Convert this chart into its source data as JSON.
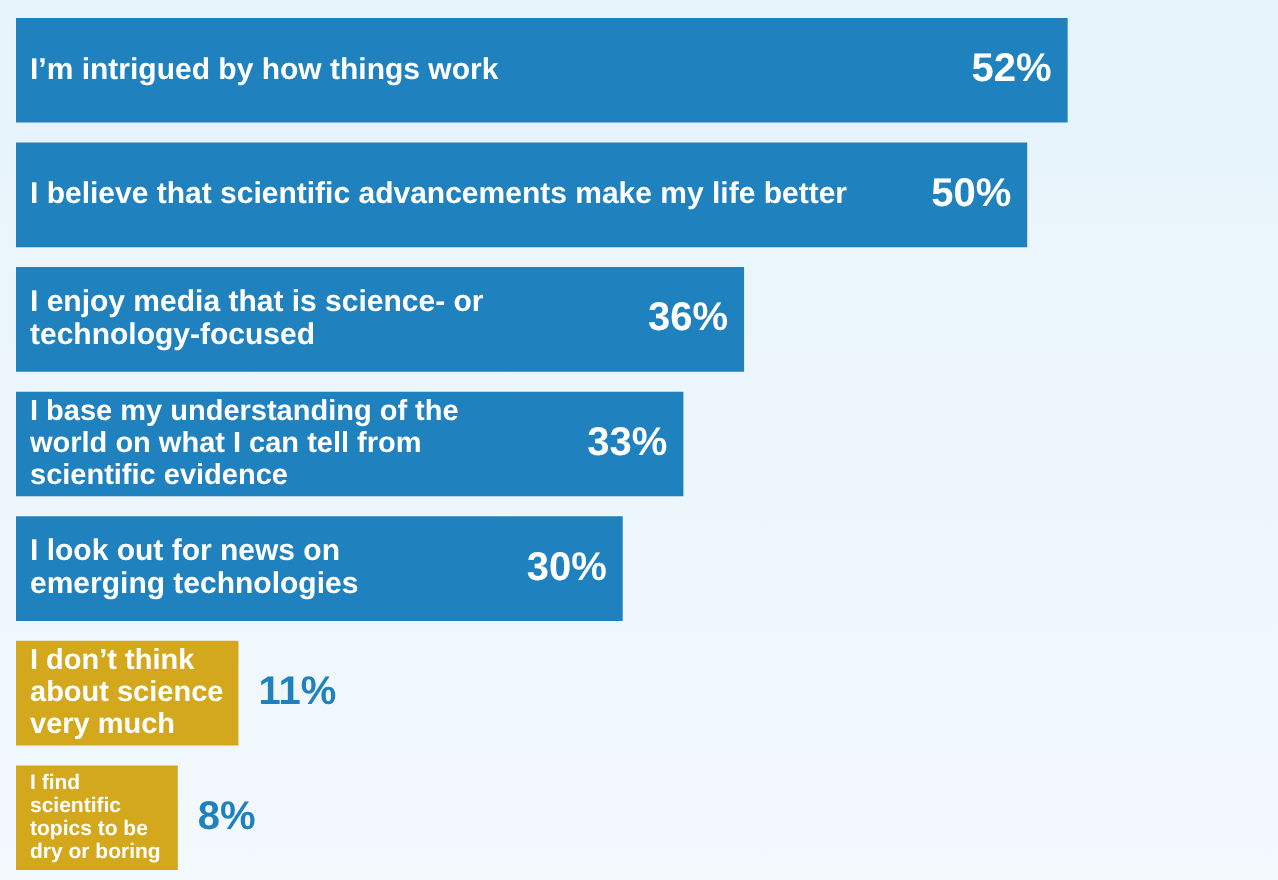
{
  "chart_data": {
    "type": "bar",
    "orientation": "horizontal",
    "value_labels": [
      "52%",
      "50%",
      "36%",
      "33%",
      "30%",
      "11%",
      "8%"
    ],
    "categories": [
      "I’m intrigued by how things work",
      "I believe that scientific advancements make my life better",
      "I enjoy media that is science- or technology-focused",
      "I base my understanding of the world on what I can tell from scientific evidence",
      "I look out for news on emerging technologies",
      "I don’t think about science very much",
      "I find scientific topics to be dry or boring"
    ],
    "values": [
      52,
      50,
      36,
      33,
      30,
      11,
      8
    ],
    "colors": [
      "#1f82bf",
      "#1f82bf",
      "#1f82bf",
      "#1f82bf",
      "#1f82bf",
      "#d3a81d",
      "#d3a81d"
    ]
  }
}
